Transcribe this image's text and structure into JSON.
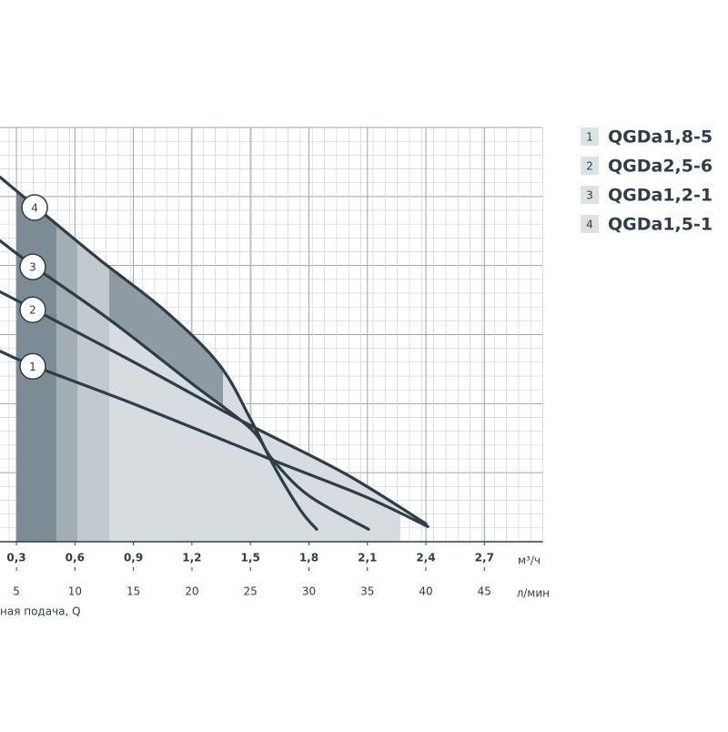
{
  "chart_data": {
    "type": "line",
    "xlabel": "ная подача, Q",
    "xunit": "м³/ч",
    "x2unit": "л/мин",
    "xlim": [
      0.2,
      3.0
    ],
    "xticks": [
      {
        "value": 0.3,
        "label": "0,3"
      },
      {
        "value": 0.6,
        "label": "0,6"
      },
      {
        "value": 0.9,
        "label": "0,9"
      },
      {
        "value": 1.2,
        "label": "1,2"
      },
      {
        "value": 1.5,
        "label": "1,5"
      },
      {
        "value": 1.8,
        "label": "1,8"
      },
      {
        "value": 2.1,
        "label": "2,1"
      },
      {
        "value": 2.4,
        "label": "2,4"
      },
      {
        "value": 2.7,
        "label": "2,7"
      }
    ],
    "x2lim": [
      3.33,
      50
    ],
    "x2ticks": [
      5,
      10,
      15,
      20,
      25,
      30,
      35,
      40,
      45
    ],
    "ylim": [
      0,
      30
    ],
    "grid": true,
    "series": [
      {
        "label": "1",
        "name": "QGDa1,8-5",
        "color": "#2d3e48",
        "x": [
          0.216,
          0.393,
          0.916,
          1.616,
          2.083,
          2.41
        ],
        "values": [
          13.8,
          12.7,
          9.9,
          5.9,
          3.3,
          1.1
        ]
      },
      {
        "label": "2",
        "name": "QGDa2,5-6",
        "color": "#2d3e48",
        "x": [
          0.216,
          0.393,
          0.916,
          1.476,
          1.989,
          2.4
        ],
        "values": [
          18.1,
          16.8,
          12.9,
          8.6,
          4.9,
          1.3
        ]
      },
      {
        "label": "3",
        "name": "QGDa1,2-1",
        "color": "#2d3e48",
        "x": [
          0.216,
          0.393,
          0.776,
          1.196,
          1.5,
          1.616,
          1.803,
          2.106
        ],
        "values": [
          21.8,
          19.9,
          16.1,
          11.5,
          8.2,
          5.9,
          3.3,
          0.9
        ]
      },
      {
        "label": "4",
        "name": "QGDa1,5-1",
        "color": "#2d3e48",
        "x": [
          0.216,
          0.403,
          0.729,
          1.056,
          1.336,
          1.5,
          1.616,
          1.756,
          1.84
        ],
        "values": [
          26.4,
          24.2,
          20.4,
          16.8,
          12.9,
          8.9,
          5.6,
          2.3,
          0.9
        ]
      }
    ]
  }
}
